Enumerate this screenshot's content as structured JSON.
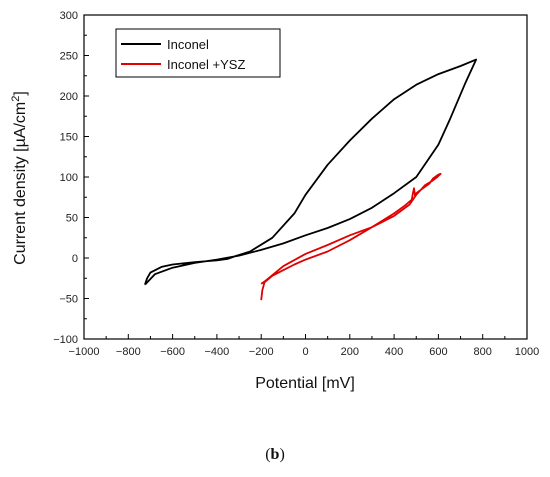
{
  "chart_data": {
    "type": "line",
    "xlabel": "Potential [mV]",
    "ylabel": "Current density [µA/cm2]",
    "ylabel_main": "Current density [µA/cm",
    "ylabel_sup": "2",
    "ylabel_end": "]",
    "xlim": [
      -1000,
      1000
    ],
    "ylim": [
      -100,
      300
    ],
    "xticks": [
      -1000,
      -800,
      -600,
      -400,
      -200,
      0,
      200,
      400,
      600,
      800,
      1000
    ],
    "yticks": [
      -100,
      -50,
      0,
      50,
      100,
      150,
      200,
      250,
      300
    ],
    "xtick_labels": [
      "−1000",
      "−800",
      "−600",
      "−400",
      "−200",
      "0",
      "200",
      "400",
      "600",
      "800",
      "1000"
    ],
    "ytick_labels": [
      "−100",
      "−50",
      "0",
      "50",
      "100",
      "150",
      "200",
      "250",
      "300"
    ],
    "grid": false,
    "legend_position": "top-left",
    "series": [
      {
        "name": "Inconel",
        "color": "#000000",
        "points": [
          [
            -725,
            -33
          ],
          [
            -715,
            -25
          ],
          [
            -700,
            -18
          ],
          [
            -650,
            -11
          ],
          [
            -600,
            -8
          ],
          [
            -500,
            -5
          ],
          [
            -400,
            -3
          ],
          [
            -350,
            -1
          ],
          [
            -320,
            2
          ],
          [
            -250,
            8
          ],
          [
            -150,
            25
          ],
          [
            -50,
            55
          ],
          [
            0,
            78
          ],
          [
            100,
            115
          ],
          [
            200,
            145
          ],
          [
            300,
            172
          ],
          [
            400,
            196
          ],
          [
            500,
            214
          ],
          [
            600,
            227
          ],
          [
            700,
            237
          ],
          [
            770,
            245
          ],
          [
            720,
            215
          ],
          [
            650,
            170
          ],
          [
            600,
            140
          ],
          [
            500,
            100
          ],
          [
            400,
            80
          ],
          [
            300,
            62
          ],
          [
            200,
            48
          ],
          [
            100,
            37
          ],
          [
            0,
            28
          ],
          [
            -100,
            18
          ],
          [
            -200,
            10
          ],
          [
            -300,
            3
          ],
          [
            -400,
            -2
          ],
          [
            -500,
            -6
          ],
          [
            -600,
            -12
          ],
          [
            -680,
            -20
          ],
          [
            -725,
            -33
          ]
        ]
      },
      {
        "name": "Inconel +YSZ",
        "color": "#e00000",
        "points": [
          [
            -200,
            -52
          ],
          [
            -195,
            -40
          ],
          [
            -185,
            -30
          ],
          [
            -150,
            -22
          ],
          [
            -100,
            -15
          ],
          [
            -50,
            -8
          ],
          [
            0,
            -2
          ],
          [
            100,
            8
          ],
          [
            200,
            22
          ],
          [
            300,
            38
          ],
          [
            400,
            55
          ],
          [
            450,
            65
          ],
          [
            480,
            72
          ],
          [
            485,
            80
          ],
          [
            490,
            86
          ],
          [
            495,
            76
          ],
          [
            500,
            80
          ],
          [
            530,
            86
          ],
          [
            560,
            92
          ],
          [
            575,
            98
          ],
          [
            600,
            103
          ],
          [
            610,
            104
          ],
          [
            595,
            100
          ],
          [
            570,
            95
          ],
          [
            540,
            90
          ],
          [
            500,
            78
          ],
          [
            470,
            66
          ],
          [
            400,
            52
          ],
          [
            300,
            38
          ],
          [
            200,
            28
          ],
          [
            100,
            16
          ],
          [
            0,
            5
          ],
          [
            -100,
            -10
          ],
          [
            -180,
            -28
          ],
          [
            -200,
            -32
          ]
        ]
      }
    ]
  },
  "caption": {
    "open": "(",
    "label": "b",
    "close": ")"
  }
}
